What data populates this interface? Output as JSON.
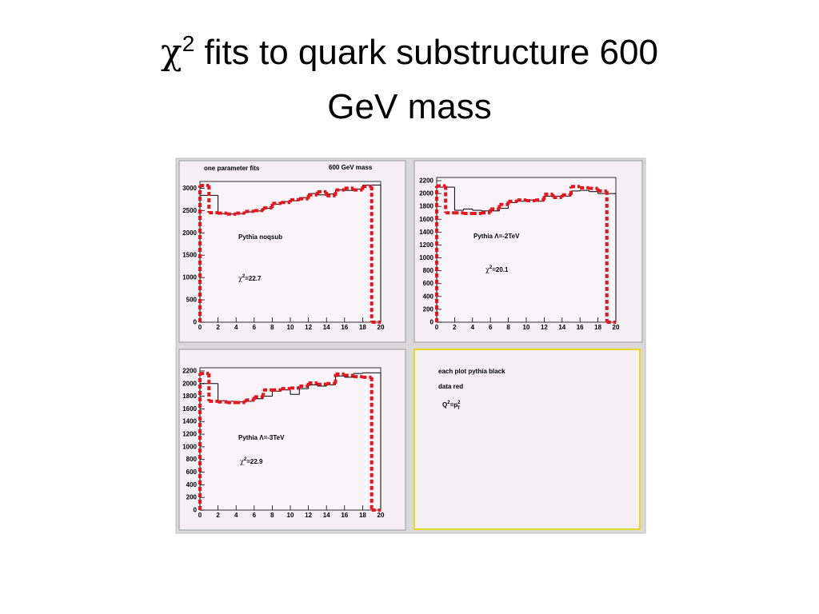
{
  "slide_title": {
    "symbol": "χ",
    "sup": "2",
    "line1": " fits to quark substructure 600",
    "line2": "GeV mass"
  },
  "chart_data": [
    {
      "type": "histogram",
      "title": "one parameter fits",
      "subtitle": "600 GeV mass",
      "bins": [
        0,
        1,
        2,
        3,
        4,
        5,
        6,
        7,
        8,
        9,
        10,
        11,
        12,
        13,
        14,
        15,
        16,
        17,
        18,
        19,
        20
      ],
      "xlim": [
        0,
        20
      ],
      "xticks": [
        0,
        2,
        4,
        6,
        8,
        10,
        12,
        14,
        16,
        18,
        20
      ],
      "ylim": [
        0,
        3150
      ],
      "yticks": [
        0,
        500,
        1000,
        1500,
        2000,
        2500,
        3000
      ],
      "series": [
        {
          "color": "#000000",
          "style": "solid",
          "values": [
            2840,
            2840,
            2430,
            2420,
            2430,
            2470,
            2490,
            2550,
            2640,
            2700,
            2720,
            2790,
            2880,
            2850,
            2870,
            2960,
            2950,
            2980,
            3070,
            3070
          ]
        },
        {
          "color": "#e8141c",
          "style": "dashed",
          "values": [
            3060,
            2450,
            2440,
            2420,
            2440,
            2480,
            2500,
            2560,
            2660,
            2680,
            2740,
            2760,
            2850,
            2920,
            2830,
            2960,
            3000,
            2960,
            3040,
            0
          ]
        }
      ],
      "label": "Pythia noqsub",
      "fit": {
        "symbol": "χ",
        "sup": "2",
        "text": "=22.7"
      }
    },
    {
      "type": "histogram",
      "bins": [
        0,
        1,
        2,
        3,
        4,
        5,
        6,
        7,
        8,
        9,
        10,
        11,
        12,
        13,
        14,
        15,
        16,
        17,
        18,
        19,
        20
      ],
      "xlim": [
        0,
        20
      ],
      "xticks": [
        0,
        2,
        4,
        6,
        8,
        10,
        12,
        14,
        16,
        18,
        20
      ],
      "ylim": [
        0,
        2250
      ],
      "yticks": [
        0,
        200,
        400,
        600,
        800,
        1000,
        1200,
        1400,
        1600,
        1800,
        2000,
        2200
      ],
      "series": [
        {
          "color": "#000000",
          "style": "solid",
          "values": [
            2100,
            2100,
            1740,
            1760,
            1740,
            1730,
            1730,
            1770,
            1860,
            1880,
            1900,
            1880,
            1960,
            1960,
            1960,
            2040,
            2050,
            2030,
            2000,
            2000
          ]
        },
        {
          "color": "#e8141c",
          "style": "dashed",
          "values": [
            2120,
            1700,
            1700,
            1690,
            1690,
            1700,
            1760,
            1830,
            1880,
            1900,
            1890,
            1900,
            1990,
            1940,
            1980,
            2110,
            2090,
            2080,
            2040,
            0
          ]
        }
      ],
      "label": "Pythia Λ=-2TeV",
      "fit": {
        "symbol": "χ",
        "sup": "2",
        "text": "=20.1"
      }
    },
    {
      "type": "histogram",
      "bins": [
        0,
        1,
        2,
        3,
        4,
        5,
        6,
        7,
        8,
        9,
        10,
        11,
        12,
        13,
        14,
        15,
        16,
        17,
        18,
        19,
        20
      ],
      "xlim": [
        0,
        20
      ],
      "xticks": [
        0,
        2,
        4,
        6,
        8,
        10,
        12,
        14,
        16,
        18,
        20
      ],
      "ylim": [
        0,
        2250
      ],
      "yticks": [
        0,
        200,
        400,
        600,
        800,
        1000,
        1200,
        1400,
        1600,
        1800,
        2000,
        2200
      ],
      "series": [
        {
          "color": "#000000",
          "style": "solid",
          "values": [
            2000,
            2000,
            1730,
            1720,
            1710,
            1720,
            1760,
            1800,
            1880,
            1900,
            1830,
            1920,
            1980,
            1960,
            1980,
            2120,
            2100,
            2160,
            2170,
            2170
          ]
        },
        {
          "color": "#e8141c",
          "style": "dashed",
          "values": [
            2160,
            1720,
            1710,
            1700,
            1700,
            1740,
            1790,
            1900,
            1900,
            1920,
            1930,
            1960,
            2010,
            1990,
            2000,
            2150,
            2130,
            2110,
            2100,
            0
          ]
        }
      ],
      "label": "Pythia Λ=-3TeV",
      "fit": {
        "symbol": "χ",
        "sup": "2",
        "text": "=22.9"
      }
    }
  ],
  "note": {
    "line1": "each plot pythia black",
    "line2": "data red",
    "formula": {
      "q": "Q",
      "q_sup": "2",
      "eq": "=p",
      "p_sup": "2",
      "p_sub": "T"
    }
  }
}
